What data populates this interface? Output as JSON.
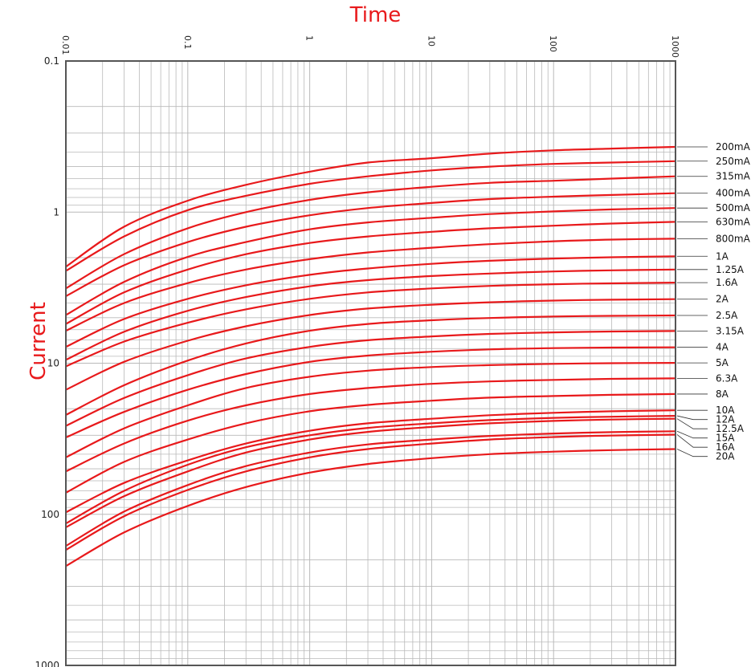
{
  "chart_data": {
    "type": "line",
    "xlabel": "Time",
    "ylabel": "Current",
    "xscale": "log",
    "yscale": "log",
    "xlim": [
      0.01,
      1000
    ],
    "ylim": [
      0.1,
      1000
    ],
    "y_inverted": true,
    "grid": true,
    "x_ticks": [
      "0.01",
      "0.1",
      "1",
      "10",
      "100",
      "1000"
    ],
    "y_ticks": [
      "0.1",
      "1",
      "10",
      "100",
      "1000"
    ],
    "series_color": "#e8191b",
    "grid_color": "#b9b9b9",
    "frame_color": "#555555",
    "series": [
      {
        "name": "200mA",
        "points": [
          [
            0.01,
            2.3
          ],
          [
            0.03,
            1.25
          ],
          [
            0.1,
            0.84
          ],
          [
            0.3,
            0.66
          ],
          [
            1,
            0.54
          ],
          [
            3,
            0.47
          ],
          [
            10,
            0.44
          ],
          [
            30,
            0.41
          ],
          [
            100,
            0.39
          ],
          [
            300,
            0.38
          ],
          [
            1000,
            0.37
          ]
        ]
      },
      {
        "name": "250mA",
        "points": [
          [
            0.01,
            2.45
          ],
          [
            0.03,
            1.45
          ],
          [
            0.1,
            0.97
          ],
          [
            0.3,
            0.78
          ],
          [
            1,
            0.65
          ],
          [
            3,
            0.58
          ],
          [
            10,
            0.53
          ],
          [
            30,
            0.5
          ],
          [
            100,
            0.48
          ],
          [
            300,
            0.47
          ],
          [
            1000,
            0.46
          ]
        ]
      },
      {
        "name": "315mA",
        "points": [
          [
            0.01,
            3.2
          ],
          [
            0.03,
            1.9
          ],
          [
            0.1,
            1.28
          ],
          [
            0.3,
            1.0
          ],
          [
            1,
            0.83
          ],
          [
            3,
            0.74
          ],
          [
            10,
            0.68
          ],
          [
            30,
            0.64
          ],
          [
            100,
            0.62
          ],
          [
            300,
            0.6
          ],
          [
            1000,
            0.58
          ]
        ]
      },
      {
        "name": "400mA",
        "points": [
          [
            0.01,
            3.6
          ],
          [
            0.03,
            2.25
          ],
          [
            0.1,
            1.58
          ],
          [
            0.3,
            1.25
          ],
          [
            1,
            1.05
          ],
          [
            3,
            0.94
          ],
          [
            10,
            0.87
          ],
          [
            30,
            0.82
          ],
          [
            100,
            0.79
          ],
          [
            300,
            0.77
          ],
          [
            1000,
            0.75
          ]
        ]
      },
      {
        "name": "500mA",
        "points": [
          [
            0.01,
            4.8
          ],
          [
            0.03,
            2.9
          ],
          [
            0.1,
            1.98
          ],
          [
            0.3,
            1.58
          ],
          [
            1,
            1.3
          ],
          [
            3,
            1.17
          ],
          [
            10,
            1.09
          ],
          [
            30,
            1.03
          ],
          [
            100,
            0.99
          ],
          [
            300,
            0.96
          ],
          [
            1000,
            0.94
          ]
        ]
      },
      {
        "name": "630mA",
        "points": [
          [
            0.01,
            5.5
          ],
          [
            0.03,
            3.4
          ],
          [
            0.1,
            2.4
          ],
          [
            0.3,
            1.9
          ],
          [
            1,
            1.6
          ],
          [
            3,
            1.45
          ],
          [
            10,
            1.35
          ],
          [
            30,
            1.28
          ],
          [
            100,
            1.23
          ],
          [
            300,
            1.19
          ],
          [
            1000,
            1.16
          ]
        ]
      },
      {
        "name": "800mA",
        "points": [
          [
            0.01,
            6.1
          ],
          [
            0.03,
            4.0
          ],
          [
            0.1,
            2.95
          ],
          [
            0.3,
            2.4
          ],
          [
            1,
            2.05
          ],
          [
            3,
            1.85
          ],
          [
            10,
            1.72
          ],
          [
            30,
            1.63
          ],
          [
            100,
            1.56
          ],
          [
            300,
            1.52
          ],
          [
            1000,
            1.5
          ]
        ]
      },
      {
        "name": "1A",
        "points": [
          [
            0.01,
            7.8
          ],
          [
            0.03,
            5.1
          ],
          [
            0.1,
            3.75
          ],
          [
            0.3,
            3.05
          ],
          [
            1,
            2.6
          ],
          [
            3,
            2.36
          ],
          [
            10,
            2.2
          ],
          [
            30,
            2.1
          ],
          [
            100,
            2.03
          ],
          [
            300,
            1.99
          ],
          [
            1000,
            1.96
          ]
        ]
      },
      {
        "name": "1.25A",
        "points": [
          [
            0.01,
            9.5
          ],
          [
            0.03,
            6.2
          ],
          [
            0.1,
            4.5
          ],
          [
            0.3,
            3.65
          ],
          [
            1,
            3.1
          ],
          [
            3,
            2.82
          ],
          [
            10,
            2.65
          ],
          [
            30,
            2.55
          ],
          [
            100,
            2.47
          ],
          [
            300,
            2.43
          ],
          [
            1000,
            2.4
          ]
        ]
      },
      {
        "name": "1.6A",
        "points": [
          [
            0.01,
            10.5
          ],
          [
            0.03,
            7.2
          ],
          [
            0.1,
            5.4
          ],
          [
            0.3,
            4.4
          ],
          [
            1,
            3.75
          ],
          [
            3,
            3.4
          ],
          [
            10,
            3.2
          ],
          [
            30,
            3.08
          ],
          [
            100,
            3.0
          ],
          [
            300,
            2.96
          ],
          [
            1000,
            2.93
          ]
        ]
      },
      {
        "name": "2A",
        "points": [
          [
            0.01,
            15.0
          ],
          [
            0.03,
            9.8
          ],
          [
            0.1,
            7.1
          ],
          [
            0.3,
            5.7
          ],
          [
            1,
            4.8
          ],
          [
            3,
            4.35
          ],
          [
            10,
            4.1
          ],
          [
            30,
            3.95
          ],
          [
            100,
            3.85
          ],
          [
            300,
            3.8
          ],
          [
            1000,
            3.77
          ]
        ]
      },
      {
        "name": "2.5A",
        "points": [
          [
            0.01,
            22.0
          ],
          [
            0.03,
            14.0
          ],
          [
            0.1,
            9.6
          ],
          [
            0.3,
            7.4
          ],
          [
            1,
            6.1
          ],
          [
            3,
            5.5
          ],
          [
            10,
            5.2
          ],
          [
            30,
            5.02
          ],
          [
            100,
            4.91
          ],
          [
            300,
            4.86
          ],
          [
            1000,
            4.83
          ]
        ]
      },
      {
        "name": "3.15A",
        "points": [
          [
            0.01,
            26.0
          ],
          [
            0.03,
            17.0
          ],
          [
            0.1,
            12.0
          ],
          [
            0.3,
            9.3
          ],
          [
            1,
            7.8
          ],
          [
            3,
            7.05
          ],
          [
            10,
            6.65
          ],
          [
            30,
            6.4
          ],
          [
            100,
            6.25
          ],
          [
            300,
            6.17
          ],
          [
            1000,
            6.12
          ]
        ]
      },
      {
        "name": "4A",
        "points": [
          [
            0.01,
            31.0
          ],
          [
            0.03,
            21.0
          ],
          [
            0.1,
            15.0
          ],
          [
            0.3,
            11.8
          ],
          [
            1,
            9.8
          ],
          [
            3,
            8.9
          ],
          [
            10,
            8.4
          ],
          [
            30,
            8.1
          ],
          [
            100,
            7.95
          ],
          [
            300,
            7.88
          ],
          [
            1000,
            7.85
          ]
        ]
      },
      {
        "name": "5A",
        "points": [
          [
            0.01,
            42.0
          ],
          [
            0.03,
            27.0
          ],
          [
            0.1,
            19.0
          ],
          [
            0.3,
            14.6
          ],
          [
            1,
            12.3
          ],
          [
            3,
            11.2
          ],
          [
            10,
            10.6
          ],
          [
            30,
            10.3
          ],
          [
            100,
            10.1
          ],
          [
            300,
            10.0
          ],
          [
            1000,
            9.95
          ]
        ]
      },
      {
        "name": "6.3A",
        "points": [
          [
            0.01,
            52.0
          ],
          [
            0.03,
            34.0
          ],
          [
            0.1,
            24.0
          ],
          [
            0.3,
            19.0
          ],
          [
            1,
            16.0
          ],
          [
            3,
            14.6
          ],
          [
            10,
            13.7
          ],
          [
            30,
            13.2
          ],
          [
            100,
            12.9
          ],
          [
            300,
            12.7
          ],
          [
            1000,
            12.6
          ]
        ]
      },
      {
        "name": "8A",
        "points": [
          [
            0.01,
            72.0
          ],
          [
            0.03,
            45.0
          ],
          [
            0.1,
            32.0
          ],
          [
            0.3,
            25.0
          ],
          [
            1,
            20.8
          ],
          [
            3,
            18.9
          ],
          [
            10,
            17.7
          ],
          [
            30,
            16.9
          ],
          [
            100,
            16.5
          ],
          [
            300,
            16.2
          ],
          [
            1000,
            16.0
          ]
        ]
      },
      {
        "name": "10A",
        "points": [
          [
            0.01,
            97.0
          ],
          [
            0.03,
            62.0
          ],
          [
            0.1,
            44.0
          ],
          [
            0.3,
            34.0
          ],
          [
            1,
            28.0
          ],
          [
            3,
            25.0
          ],
          [
            10,
            23.3
          ],
          [
            30,
            22.1
          ],
          [
            100,
            21.3
          ],
          [
            300,
            20.8
          ],
          [
            1000,
            20.5
          ]
        ]
      },
      {
        "name": "12A",
        "points": [
          [
            0.01,
            115.0
          ],
          [
            0.03,
            70.0
          ],
          [
            0.1,
            47.0
          ],
          [
            0.3,
            36.0
          ],
          [
            1,
            30.0
          ],
          [
            3,
            26.8
          ],
          [
            10,
            25.0
          ],
          [
            30,
            23.8
          ],
          [
            100,
            23.0
          ],
          [
            300,
            22.6
          ],
          [
            1000,
            22.3
          ]
        ]
      },
      {
        "name": "12.5A",
        "points": [
          [
            0.01,
            122.0
          ],
          [
            0.03,
            76.0
          ],
          [
            0.1,
            52.0
          ],
          [
            0.3,
            39.0
          ],
          [
            1,
            32.0
          ],
          [
            3,
            28.5
          ],
          [
            10,
            26.4
          ],
          [
            30,
            25.0
          ],
          [
            100,
            24.1
          ],
          [
            300,
            23.6
          ],
          [
            1000,
            23.3
          ]
        ]
      },
      {
        "name": "15A",
        "points": [
          [
            0.01,
            162.0
          ],
          [
            0.03,
            96.0
          ],
          [
            0.1,
            64.0
          ],
          [
            0.3,
            48.0
          ],
          [
            1,
            39.0
          ],
          [
            3,
            34.5
          ],
          [
            10,
            32.0
          ],
          [
            30,
            30.3
          ],
          [
            100,
            29.2
          ],
          [
            300,
            28.6
          ],
          [
            1000,
            28.2
          ]
        ]
      },
      {
        "name": "16A",
        "points": [
          [
            0.01,
            172.0
          ],
          [
            0.03,
            103.0
          ],
          [
            0.1,
            69.0
          ],
          [
            0.3,
            52.0
          ],
          [
            1,
            42.0
          ],
          [
            3,
            37.0
          ],
          [
            10,
            34.0
          ],
          [
            30,
            32.0
          ],
          [
            100,
            30.8
          ],
          [
            300,
            30.1
          ],
          [
            1000,
            29.7
          ]
        ]
      },
      {
        "name": "20A",
        "points": [
          [
            0.01,
            220.0
          ],
          [
            0.03,
            132.0
          ],
          [
            0.1,
            88.0
          ],
          [
            0.3,
            66.0
          ],
          [
            1,
            53.0
          ],
          [
            3,
            46.5
          ],
          [
            10,
            42.5
          ],
          [
            30,
            40.0
          ],
          [
            100,
            38.5
          ],
          [
            300,
            37.6
          ],
          [
            1000,
            37.0
          ]
        ]
      }
    ]
  }
}
